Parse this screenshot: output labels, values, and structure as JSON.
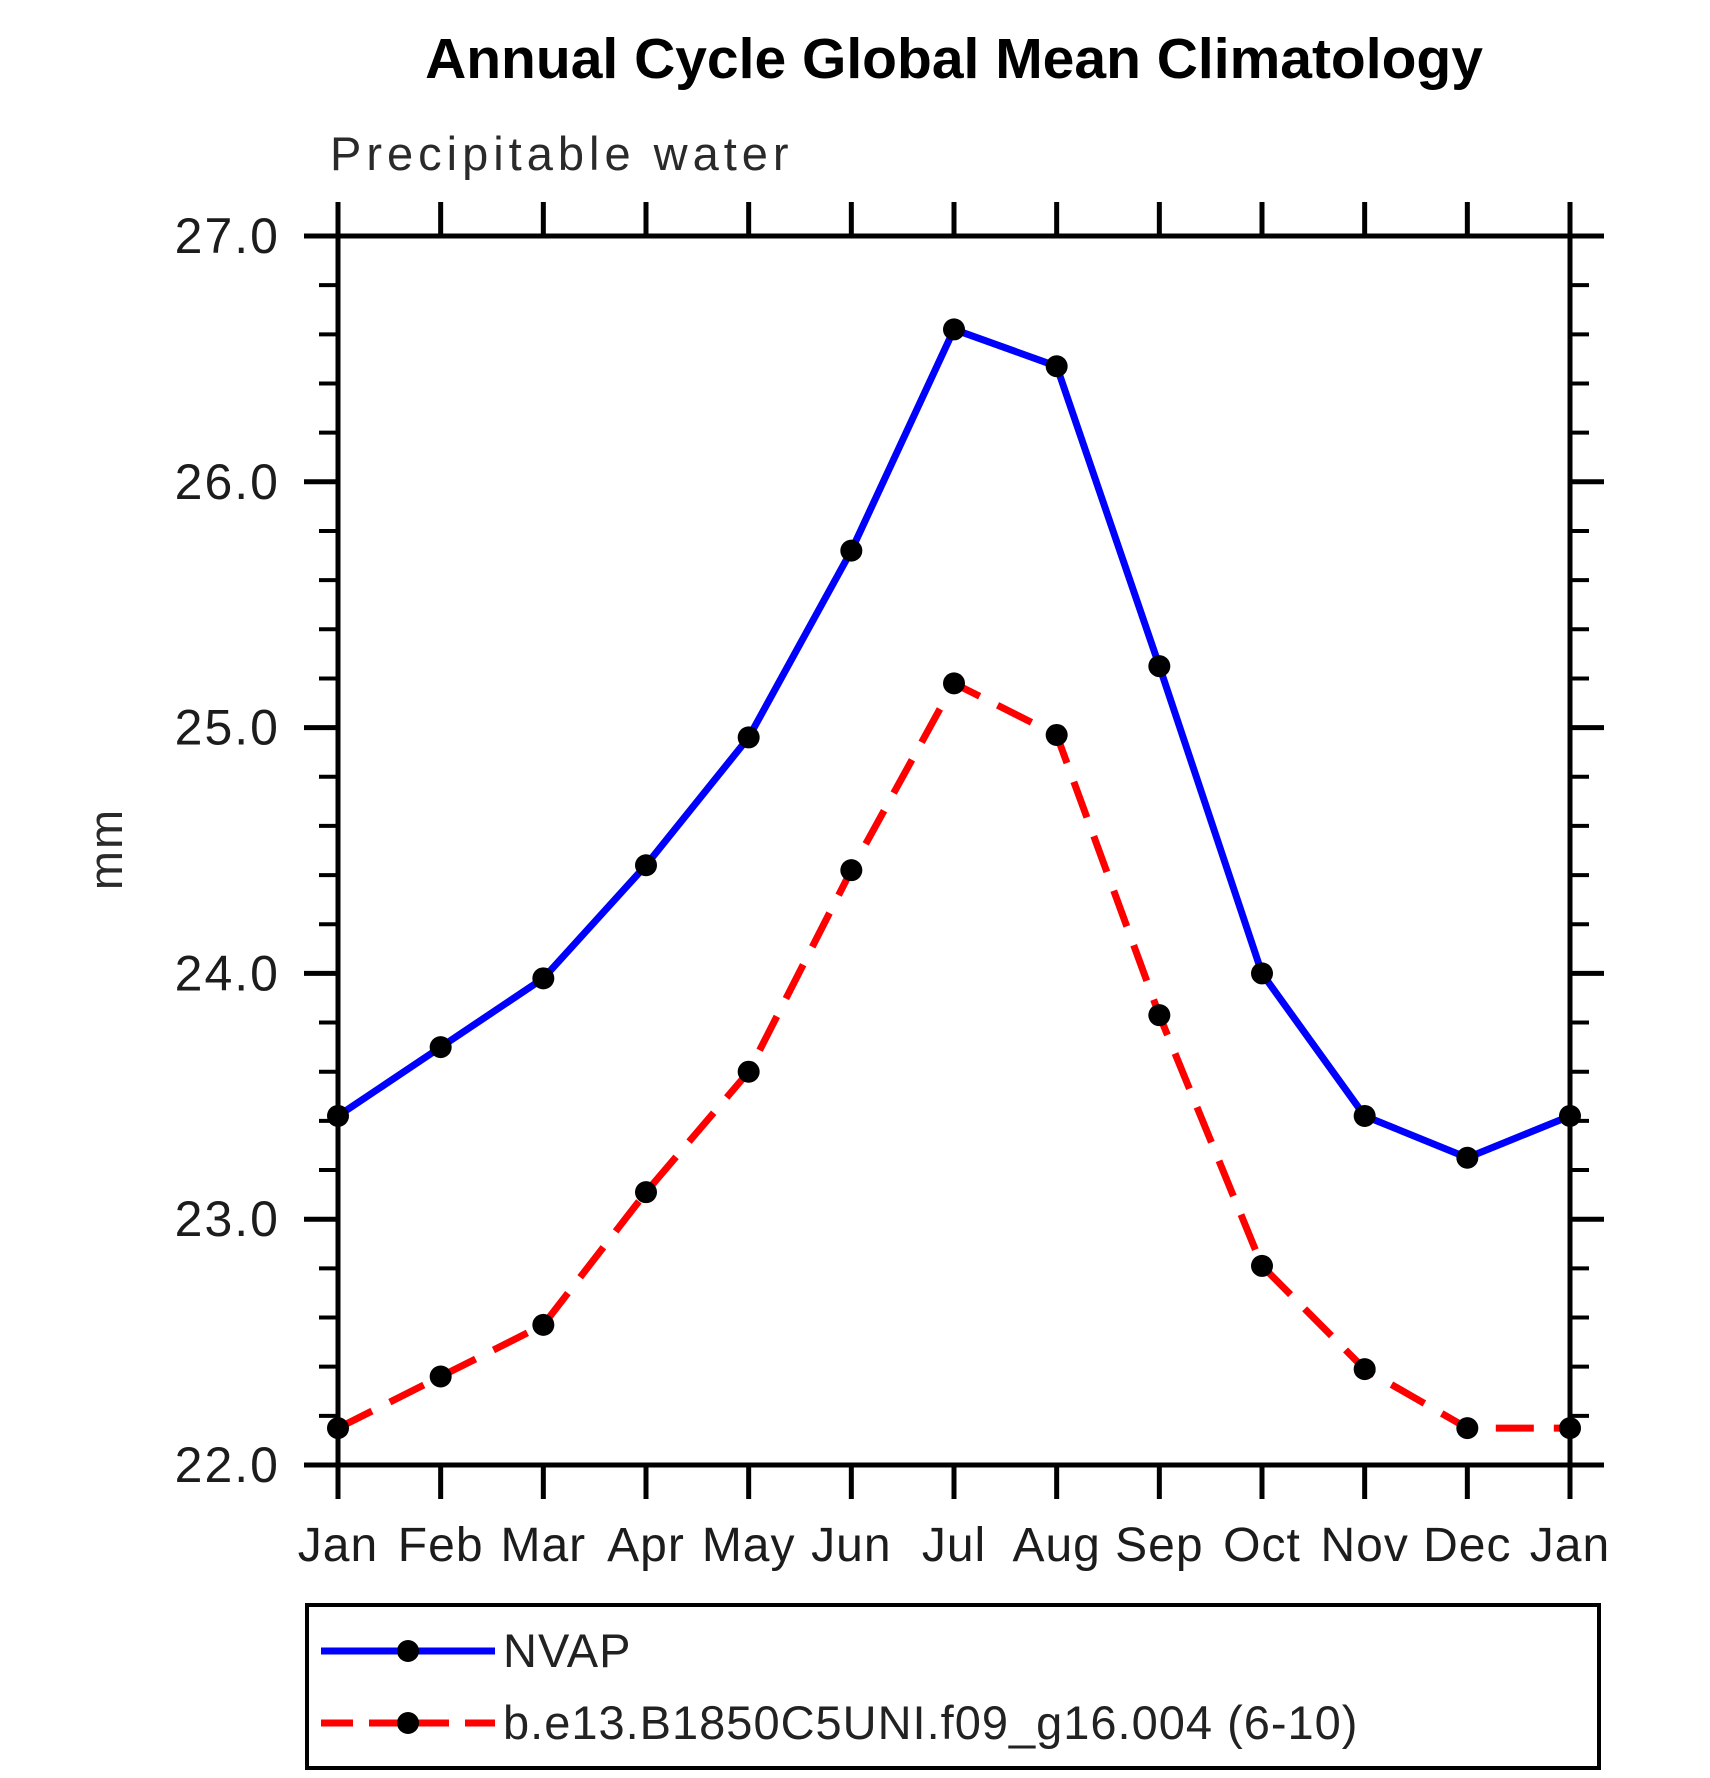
{
  "chart_data": {
    "type": "line",
    "title": "Annual Cycle Global Mean Climatology",
    "subtitle": "Precipitable water",
    "ylabel": "mm",
    "xlabel": "",
    "categories": [
      "Jan",
      "Feb",
      "Mar",
      "Apr",
      "May",
      "Jun",
      "Jul",
      "Aug",
      "Sep",
      "Oct",
      "Nov",
      "Dec",
      "Jan"
    ],
    "ylim": [
      22.0,
      27.0
    ],
    "y_major_ticks": [
      22.0,
      23.0,
      24.0,
      25.0,
      26.0,
      27.0
    ],
    "y_tick_labels": [
      "22.0",
      "23.0",
      "24.0",
      "25.0",
      "26.0",
      "27.0"
    ],
    "y_minor_step": 0.2,
    "grid": false,
    "legend_position": "bottom-left",
    "axis_color": "#000000",
    "series": [
      {
        "name": "NVAP",
        "color": "#0000ff",
        "style": "solid",
        "marker": "circle",
        "marker_color": "#000000",
        "values": [
          23.42,
          23.7,
          23.98,
          24.44,
          24.96,
          25.72,
          26.62,
          26.47,
          25.25,
          24.0,
          23.42,
          23.25,
          23.42
        ]
      },
      {
        "name": "b.e13.B1850C5UNI.f09_g16.004 (6-10)",
        "color": "#ff0000",
        "style": "dashed",
        "marker": "circle",
        "marker_color": "#000000",
        "values": [
          22.15,
          22.36,
          22.57,
          23.11,
          23.6,
          24.42,
          25.18,
          24.97,
          23.83,
          22.81,
          22.39,
          22.15,
          22.15
        ]
      }
    ]
  }
}
